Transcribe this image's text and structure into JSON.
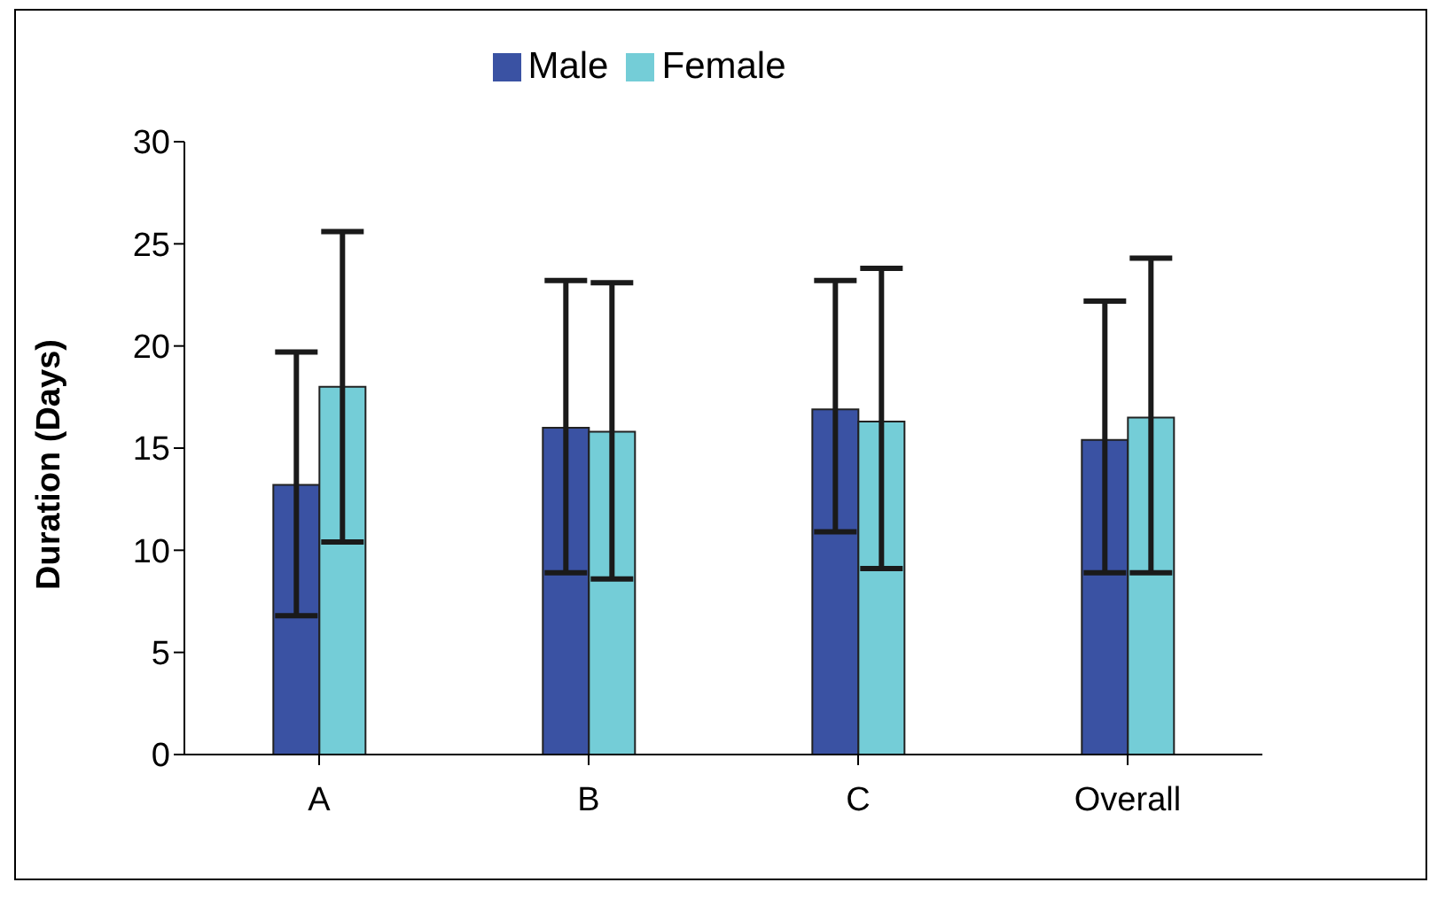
{
  "chart_data": {
    "type": "bar",
    "ylabel": "Duration (Days)",
    "categories": [
      "A",
      "B",
      "C",
      "Overall"
    ],
    "series": [
      {
        "name": "Male",
        "color": "#3a52a3",
        "values": [
          13.2,
          16.0,
          16.9,
          15.4
        ],
        "errors": [
          [
            6.8,
            19.7
          ],
          [
            8.9,
            23.2
          ],
          [
            10.9,
            23.2
          ],
          [
            8.9,
            22.2
          ]
        ]
      },
      {
        "name": "Female",
        "color": "#74cdd7",
        "values": [
          18.0,
          15.8,
          16.3,
          16.5
        ],
        "errors": [
          [
            10.4,
            25.6
          ],
          [
            8.6,
            23.1
          ],
          [
            9.1,
            23.8
          ],
          [
            8.9,
            24.3
          ]
        ]
      }
    ],
    "ylim": [
      0,
      30
    ],
    "yticks": [
      0,
      5,
      10,
      15,
      20,
      25,
      30
    ],
    "grid": false,
    "legend": "top"
  }
}
